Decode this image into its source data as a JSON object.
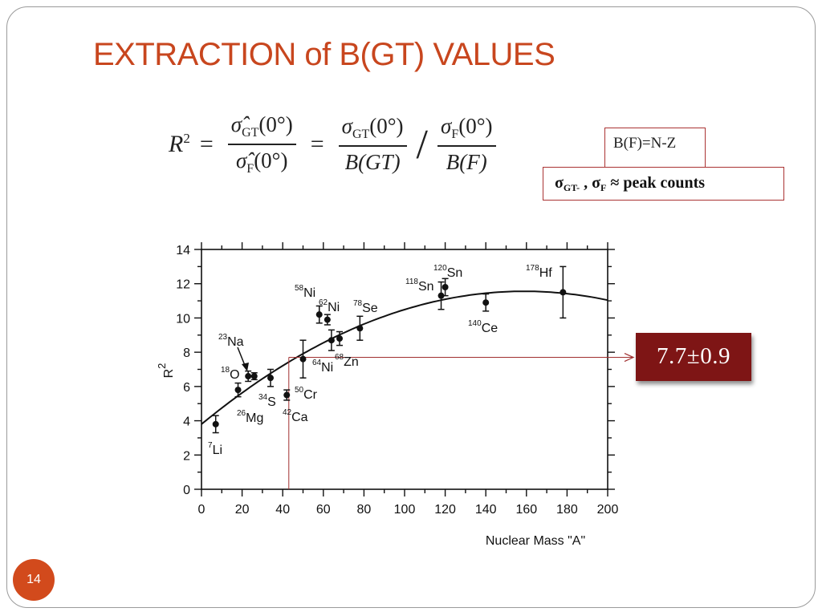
{
  "slide": {
    "title": "EXTRACTION of B(GT) VALUES",
    "page_number": "14",
    "colors": {
      "title": "#c8461e",
      "box_border": "#aa3333",
      "result_bg": "#7e1515",
      "badge": "#d24a1c"
    }
  },
  "formula": {
    "lhs": "R",
    "lhs_exp": "2",
    "eq": "=",
    "frac1_num": "σ̂",
    "frac1_num_sub": "GT",
    "frac1_num_arg": "(0°)",
    "frac1_den": "σ̂",
    "frac1_den_sub": "F",
    "frac1_den_arg": "(0°)",
    "frac2_num": "σ",
    "frac2_num_sub": "GT",
    "frac2_num_arg": "(0°)",
    "frac2_den": "B(GT)",
    "slash": "/",
    "frac3_num": "σ",
    "frac3_num_sub": "F",
    "frac3_num_arg": "(0°)",
    "frac3_den": "B(F)"
  },
  "notes": {
    "bf_label": "B(F)=N-Z",
    "sigma_label_a": "σ",
    "sigma_sub_a": "GT-",
    "sigma_sep": " , ",
    "sigma_label_b": "σ",
    "sigma_sub_b": "F",
    "sigma_rest": " ≈ peak counts"
  },
  "result": {
    "value": "7.7±0.9"
  },
  "chart_data": {
    "type": "scatter",
    "xlabel": "Nuclear Mass \"A\"",
    "ylabel": "R",
    "ylabel_exp": "2",
    "xlim": [
      0,
      200
    ],
    "ylim": [
      0,
      14
    ],
    "x_ticks": [
      0,
      20,
      40,
      60,
      80,
      100,
      120,
      140,
      160,
      180,
      200
    ],
    "y_ticks": [
      0,
      2,
      4,
      6,
      8,
      10,
      12,
      14
    ],
    "grid": false,
    "points": [
      {
        "A": 7,
        "R2": 3.8,
        "err": 0.5,
        "mass": "7",
        "symbol": "Li"
      },
      {
        "A": 18,
        "R2": 5.8,
        "err": 0.4,
        "mass": "18",
        "symbol": "O"
      },
      {
        "A": 23,
        "R2": 6.6,
        "err": 0.3,
        "mass": "23",
        "symbol": "Na"
      },
      {
        "A": 26,
        "R2": 6.6,
        "err": 0.2,
        "mass": "26",
        "symbol": "Mg"
      },
      {
        "A": 34,
        "R2": 6.5,
        "err": 0.5,
        "mass": "34",
        "symbol": "S"
      },
      {
        "A": 42,
        "R2": 5.5,
        "err": 0.3,
        "mass": "42",
        "symbol": "Ca"
      },
      {
        "A": 50,
        "R2": 7.6,
        "err": 1.1,
        "mass": "50",
        "symbol": "Cr"
      },
      {
        "A": 58,
        "R2": 10.2,
        "err": 0.5,
        "mass": "58",
        "symbol": "Ni"
      },
      {
        "A": 62,
        "R2": 9.9,
        "err": 0.3,
        "mass": "62",
        "symbol": "Ni"
      },
      {
        "A": 64,
        "R2": 8.7,
        "err": 0.6,
        "mass": "64",
        "symbol": "Ni"
      },
      {
        "A": 68,
        "R2": 8.8,
        "err": 0.4,
        "mass": "68",
        "symbol": "Zn"
      },
      {
        "A": 78,
        "R2": 9.4,
        "err": 0.7,
        "mass": "78",
        "symbol": "Se"
      },
      {
        "A": 118,
        "R2": 11.3,
        "err": 0.8,
        "mass": "118",
        "symbol": "Sn"
      },
      {
        "A": 120,
        "R2": 11.8,
        "err": 0.5,
        "mass": "120",
        "symbol": "Sn"
      },
      {
        "A": 140,
        "R2": 10.9,
        "err": 0.5,
        "mass": "140",
        "symbol": "Ce"
      },
      {
        "A": 178,
        "R2": 11.5,
        "err": 1.5,
        "mass": "178",
        "symbol": "Hf"
      }
    ],
    "fit_curve": {
      "type": "quadratic",
      "a": 3.8,
      "b": 0.0976,
      "c": -0.000307,
      "x_range": [
        0,
        200
      ]
    },
    "readout": {
      "A": 43,
      "R2": 7.7,
      "color": "#a03030"
    }
  }
}
